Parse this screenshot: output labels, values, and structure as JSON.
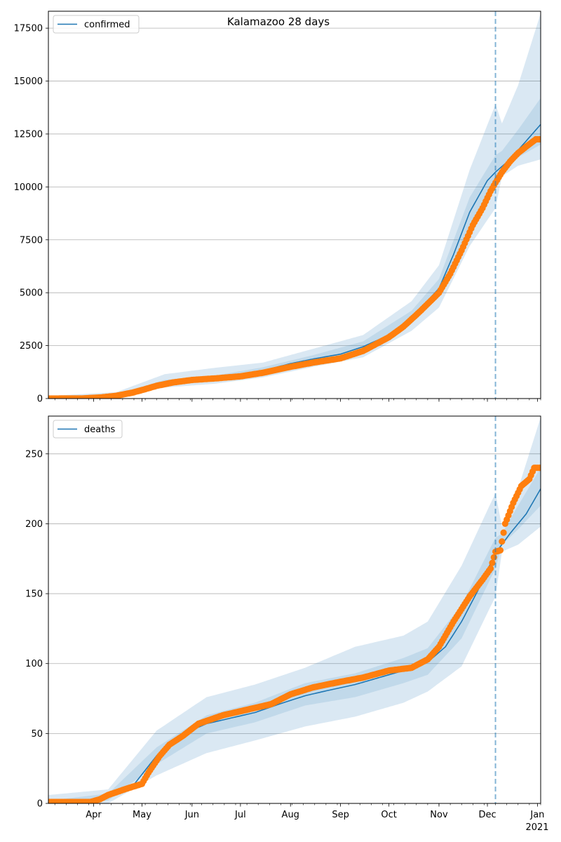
{
  "title": "Kalamazoo 28 days",
  "colors": {
    "model": "#1f77b4",
    "observed": "#ff7f0e",
    "grid": "#b0b0b0"
  },
  "x_axis": {
    "ticks": [
      {
        "date": "2020-04-01",
        "label": "Apr"
      },
      {
        "date": "2020-05-01",
        "label": "May"
      },
      {
        "date": "2020-06-01",
        "label": "Jun"
      },
      {
        "date": "2020-07-01",
        "label": "Jul"
      },
      {
        "date": "2020-08-01",
        "label": "Aug"
      },
      {
        "date": "2020-09-01",
        "label": "Sep"
      },
      {
        "date": "2020-10-01",
        "label": "Oct"
      },
      {
        "date": "2020-11-01",
        "label": "Nov"
      },
      {
        "date": "2020-12-01",
        "label": "Dec"
      },
      {
        "date": "2021-01-01",
        "label": "Jan"
      }
    ],
    "year_label": "2021",
    "range": [
      "2020-03-04",
      "2021-01-03"
    ],
    "forecast_start": "2020-12-06"
  },
  "chart_data": [
    {
      "type": "line",
      "legend": "confirmed",
      "legend_position": "upper left",
      "grid": "horizontal",
      "ylim": [
        0,
        18300
      ],
      "yticks": [
        0,
        2500,
        5000,
        7500,
        10000,
        12500,
        15000,
        17500
      ],
      "model": [
        [
          "2020-03-04",
          10
        ],
        [
          "2020-03-20",
          15
        ],
        [
          "2020-04-01",
          40
        ],
        [
          "2020-04-15",
          120
        ],
        [
          "2020-05-01",
          420
        ],
        [
          "2020-05-15",
          720
        ],
        [
          "2020-06-01",
          900
        ],
        [
          "2020-06-15",
          960
        ],
        [
          "2020-07-01",
          1100
        ],
        [
          "2020-07-15",
          1320
        ],
        [
          "2020-08-01",
          1650
        ],
        [
          "2020-08-15",
          1870
        ],
        [
          "2020-09-01",
          2100
        ],
        [
          "2020-09-15",
          2450
        ],
        [
          "2020-10-01",
          3000
        ],
        [
          "2020-10-15",
          3800
        ],
        [
          "2020-11-01",
          5200
        ],
        [
          "2020-11-10",
          6800
        ],
        [
          "2020-11-20",
          8800
        ],
        [
          "2020-12-01",
          10300
        ],
        [
          "2020-12-06",
          10700
        ],
        [
          "2020-12-15",
          11300
        ],
        [
          "2021-01-03",
          12950
        ]
      ],
      "band_90": [
        [
          "2020-03-04",
          0,
          120
        ],
        [
          "2020-04-15",
          40,
          300
        ],
        [
          "2020-05-15",
          520,
          1150
        ],
        [
          "2020-06-15",
          700,
          1450
        ],
        [
          "2020-07-15",
          1000,
          1700
        ],
        [
          "2020-08-15",
          1500,
          2350
        ],
        [
          "2020-09-15",
          1950,
          3000
        ],
        [
          "2020-10-15",
          3200,
          4600
        ],
        [
          "2020-11-01",
          4300,
          6300
        ],
        [
          "2020-11-20",
          7200,
          10800
        ],
        [
          "2020-12-06",
          9000,
          13900
        ],
        [
          "2020-12-10",
          10500,
          13000
        ],
        [
          "2020-12-20",
          11000,
          14800
        ],
        [
          "2021-01-03",
          11300,
          18200
        ]
      ],
      "band_50": [
        [
          "2020-03-04",
          0,
          60
        ],
        [
          "2020-04-15",
          80,
          200
        ],
        [
          "2020-05-15",
          640,
          880
        ],
        [
          "2020-06-15",
          860,
          1080
        ],
        [
          "2020-07-15",
          1200,
          1480
        ],
        [
          "2020-08-15",
          1720,
          2050
        ],
        [
          "2020-09-15",
          2250,
          2700
        ],
        [
          "2020-10-15",
          3550,
          4150
        ],
        [
          "2020-11-01",
          4850,
          5650
        ],
        [
          "2020-11-20",
          8200,
          9500
        ],
        [
          "2020-12-06",
          10000,
          11500
        ],
        [
          "2020-12-10",
          10800,
          11700
        ],
        [
          "2020-12-20",
          11400,
          12700
        ],
        [
          "2021-01-03",
          12000,
          14200
        ]
      ],
      "observed": [
        [
          "2020-03-04",
          0
        ],
        [
          "2020-03-25",
          5
        ],
        [
          "2020-04-05",
          50
        ],
        [
          "2020-04-15",
          130
        ],
        [
          "2020-04-25",
          280
        ],
        [
          "2020-05-01",
          400
        ],
        [
          "2020-05-10",
          600
        ],
        [
          "2020-05-20",
          760
        ],
        [
          "2020-06-01",
          880
        ],
        [
          "2020-06-15",
          950
        ],
        [
          "2020-07-01",
          1050
        ],
        [
          "2020-07-15",
          1220
        ],
        [
          "2020-08-01",
          1500
        ],
        [
          "2020-08-15",
          1700
        ],
        [
          "2020-09-01",
          1900
        ],
        [
          "2020-09-15",
          2250
        ],
        [
          "2020-10-01",
          2900
        ],
        [
          "2020-10-10",
          3400
        ],
        [
          "2020-10-20",
          4100
        ],
        [
          "2020-11-01",
          5000
        ],
        [
          "2020-11-08",
          5900
        ],
        [
          "2020-11-15",
          7000
        ],
        [
          "2020-11-22",
          8200
        ],
        [
          "2020-11-28",
          9000
        ],
        [
          "2020-12-03",
          9800
        ],
        [
          "2020-12-06",
          10200
        ],
        [
          "2020-12-10",
          10700
        ],
        [
          "2020-12-15",
          11200
        ],
        [
          "2020-12-20",
          11600
        ],
        [
          "2020-12-25",
          11900
        ],
        [
          "2020-12-31",
          12250
        ],
        [
          "2021-01-03",
          12250
        ]
      ]
    },
    {
      "type": "line",
      "legend": "deaths",
      "legend_position": "upper left",
      "grid": "horizontal",
      "ylim": [
        0,
        277
      ],
      "yticks": [
        0,
        50,
        100,
        150,
        200,
        250
      ],
      "model": [
        [
          "2020-03-04",
          0
        ],
        [
          "2020-03-25",
          1
        ],
        [
          "2020-04-10",
          5
        ],
        [
          "2020-04-25",
          12
        ],
        [
          "2020-05-10",
          34
        ],
        [
          "2020-05-25",
          49
        ],
        [
          "2020-06-10",
          57
        ],
        [
          "2020-06-25",
          61
        ],
        [
          "2020-07-10",
          65
        ],
        [
          "2020-07-25",
          71
        ],
        [
          "2020-08-10",
          77
        ],
        [
          "2020-08-25",
          81
        ],
        [
          "2020-09-10",
          85
        ],
        [
          "2020-09-25",
          90
        ],
        [
          "2020-10-10",
          95
        ],
        [
          "2020-10-25",
          101
        ],
        [
          "2020-11-05",
          112
        ],
        [
          "2020-11-15",
          130
        ],
        [
          "2020-11-25",
          152
        ],
        [
          "2020-12-06",
          179
        ],
        [
          "2020-12-15",
          193
        ],
        [
          "2020-12-25",
          207
        ],
        [
          "2021-01-03",
          225
        ]
      ],
      "band_90": [
        [
          "2020-03-04",
          0,
          6
        ],
        [
          "2020-04-10",
          0,
          10
        ],
        [
          "2020-05-10",
          20,
          52
        ],
        [
          "2020-06-10",
          36,
          76
        ],
        [
          "2020-07-10",
          45,
          85
        ],
        [
          "2020-08-10",
          55,
          97
        ],
        [
          "2020-09-10",
          62,
          112
        ],
        [
          "2020-10-10",
          72,
          120
        ],
        [
          "2020-10-25",
          80,
          130
        ],
        [
          "2020-11-15",
          98,
          170
        ],
        [
          "2020-12-06",
          148,
          222
        ],
        [
          "2020-12-10",
          180,
          198
        ],
        [
          "2020-12-20",
          185,
          225
        ],
        [
          "2021-01-03",
          198,
          276
        ]
      ],
      "band_50": [
        [
          "2020-03-04",
          0,
          2
        ],
        [
          "2020-04-10",
          2,
          7
        ],
        [
          "2020-05-10",
          28,
          40
        ],
        [
          "2020-06-10",
          50,
          63
        ],
        [
          "2020-07-10",
          58,
          72
        ],
        [
          "2020-08-10",
          70,
          86
        ],
        [
          "2020-09-10",
          76,
          93
        ],
        [
          "2020-10-10",
          86,
          104
        ],
        [
          "2020-10-25",
          92,
          111
        ],
        [
          "2020-11-15",
          118,
          142
        ],
        [
          "2020-12-06",
          168,
          190
        ],
        [
          "2020-12-10",
          185,
          193
        ],
        [
          "2020-12-20",
          196,
          213
        ],
        [
          "2021-01-03",
          213,
          240
        ]
      ],
      "observed": [
        [
          "2020-03-04",
          1
        ],
        [
          "2020-03-30",
          1
        ],
        [
          "2020-04-05",
          3
        ],
        [
          "2020-04-10",
          6
        ],
        [
          "2020-04-20",
          10
        ],
        [
          "2020-05-01",
          14
        ],
        [
          "2020-05-05",
          22
        ],
        [
          "2020-05-12",
          34
        ],
        [
          "2020-05-18",
          42
        ],
        [
          "2020-05-26",
          48
        ],
        [
          "2020-06-05",
          57
        ],
        [
          "2020-06-20",
          63
        ],
        [
          "2020-07-05",
          67
        ],
        [
          "2020-07-20",
          71
        ],
        [
          "2020-08-01",
          78
        ],
        [
          "2020-08-15",
          83
        ],
        [
          "2020-09-01",
          87
        ],
        [
          "2020-09-15",
          90
        ],
        [
          "2020-10-01",
          95
        ],
        [
          "2020-10-15",
          97
        ],
        [
          "2020-10-25",
          103
        ],
        [
          "2020-11-01",
          112
        ],
        [
          "2020-11-10",
          130
        ],
        [
          "2020-11-20",
          148
        ],
        [
          "2020-11-28",
          160
        ],
        [
          "2020-12-03",
          168
        ],
        [
          "2020-12-06",
          180
        ],
        [
          "2020-12-09",
          181
        ],
        [
          "2020-12-12",
          200
        ],
        [
          "2020-12-17",
          215
        ],
        [
          "2020-12-22",
          227
        ],
        [
          "2020-12-27",
          232
        ],
        [
          "2020-12-30",
          240
        ],
        [
          "2021-01-03",
          240
        ]
      ]
    }
  ]
}
